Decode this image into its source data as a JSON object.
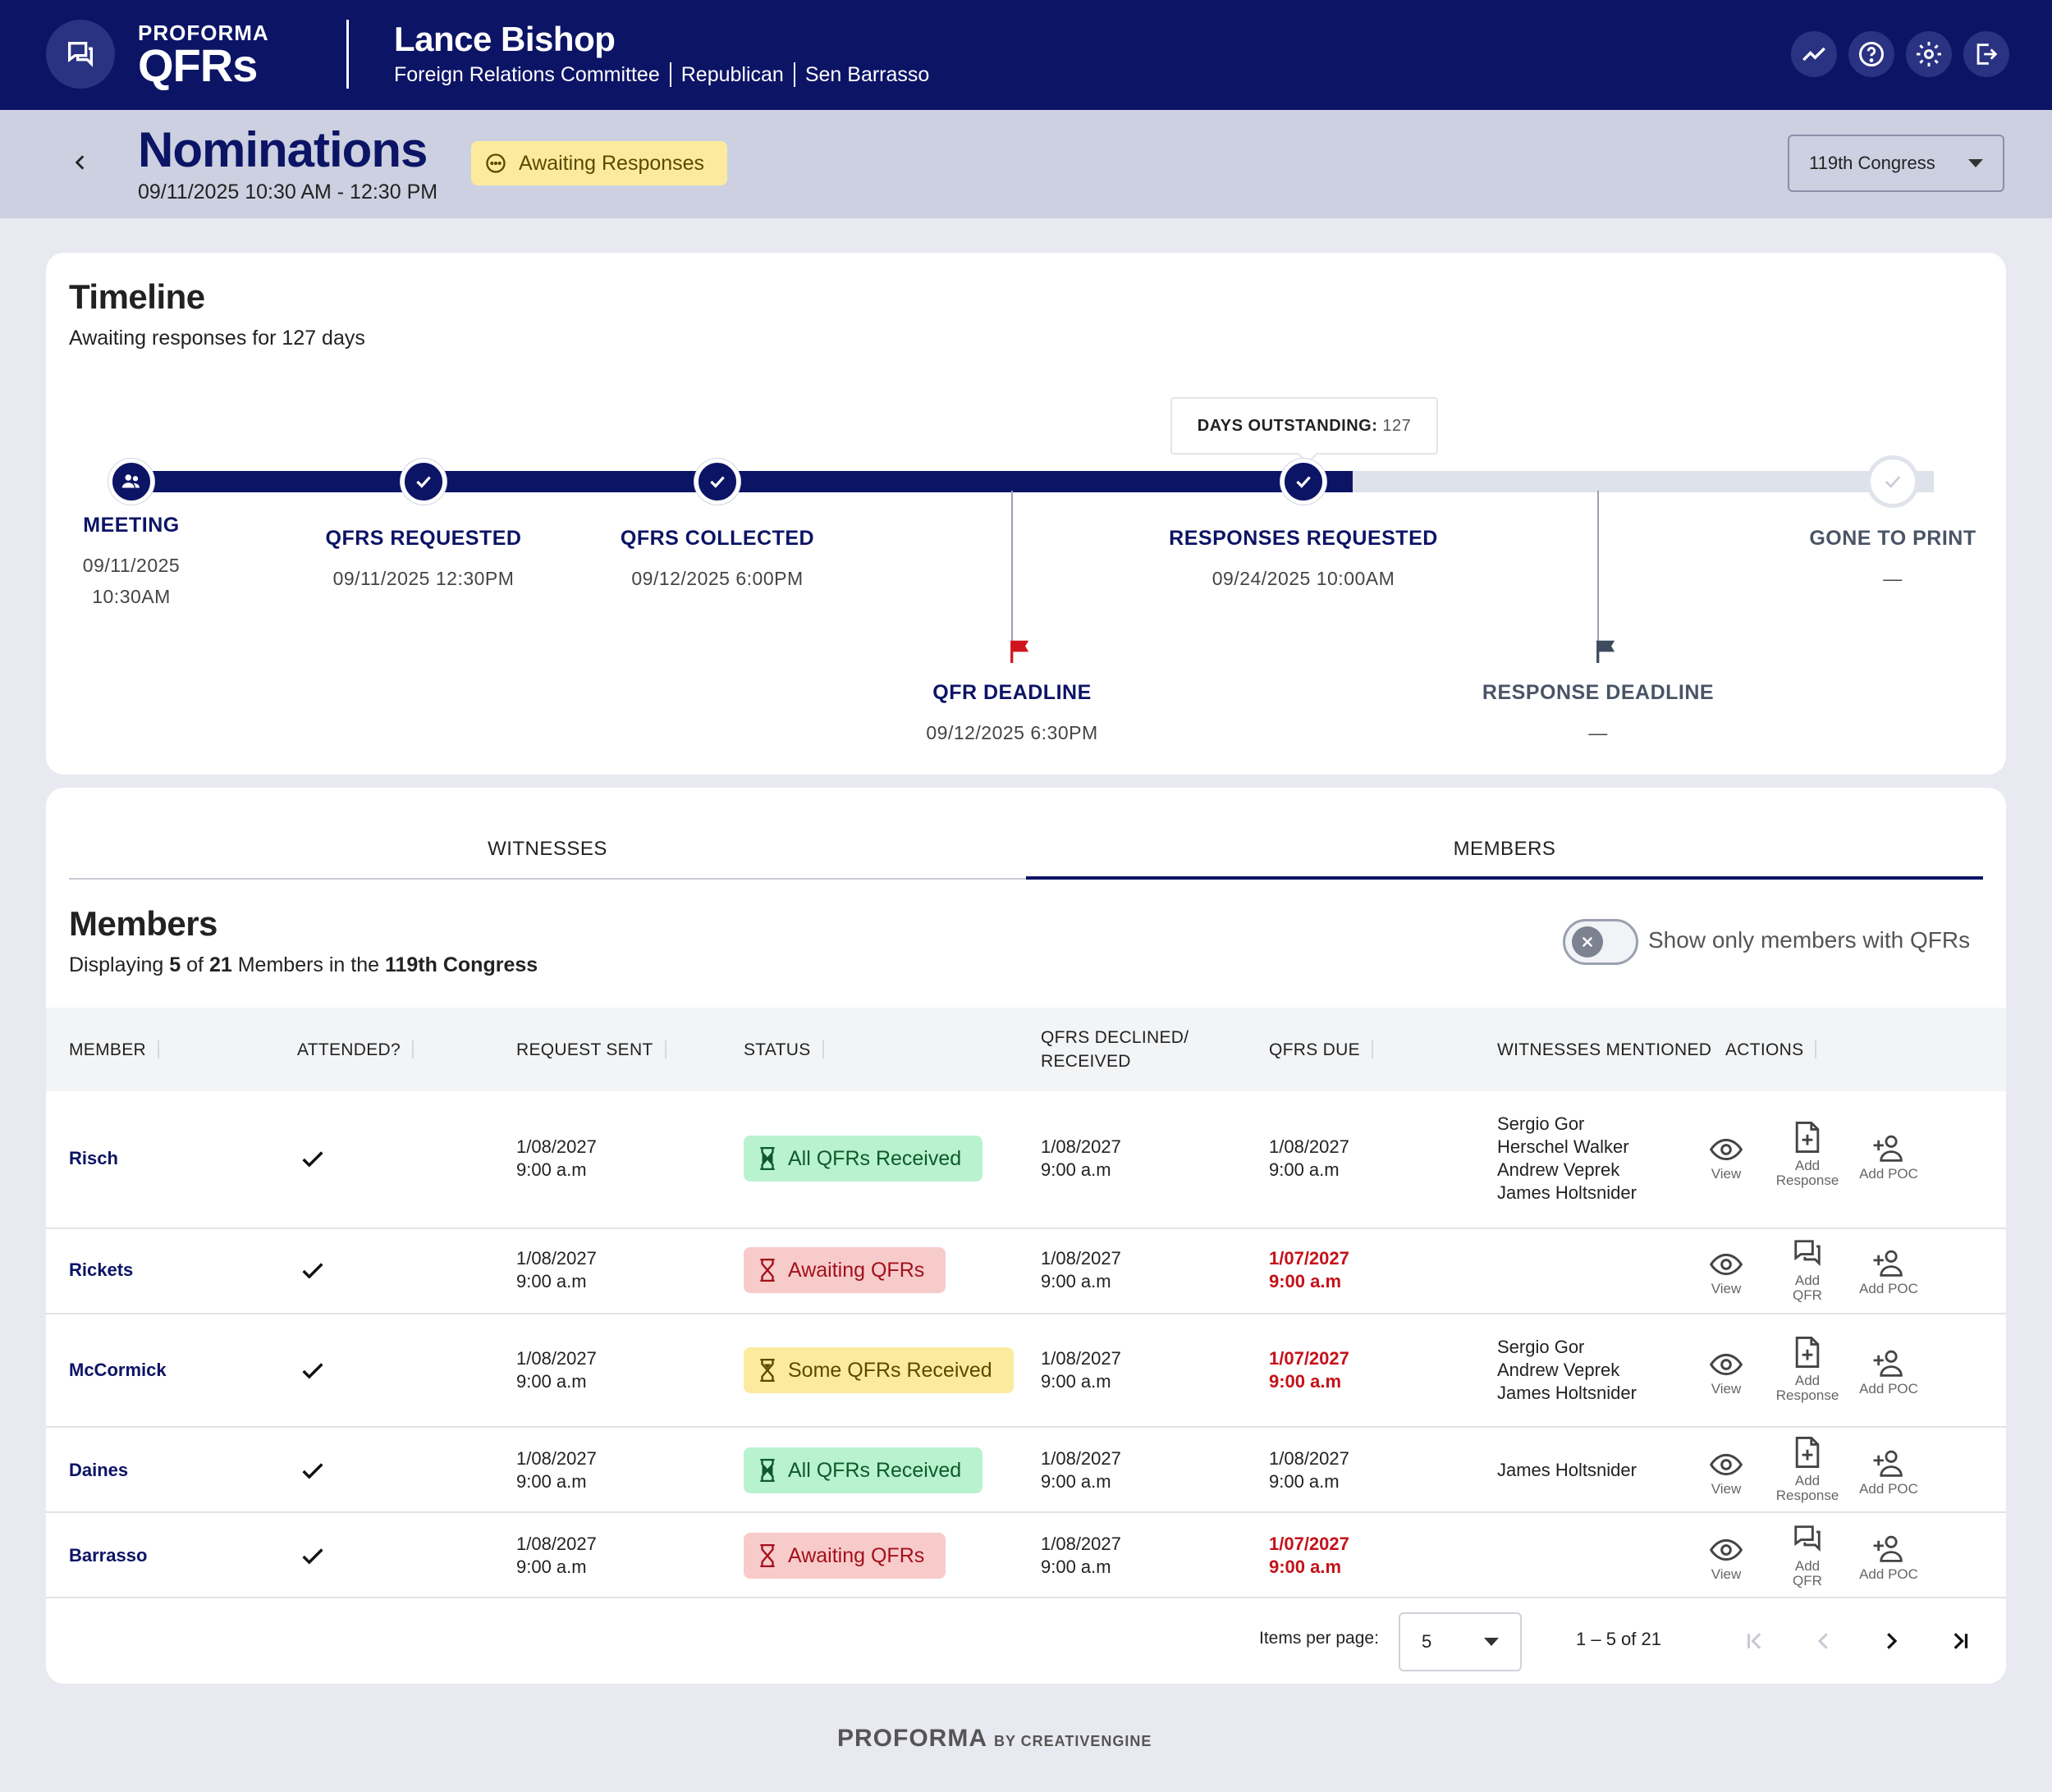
{
  "header": {
    "logo_top": "PROFORMA",
    "logo_main": "QFRs",
    "user_name": "Lance Bishop",
    "committee": "Foreign Relations Committee",
    "party": "Republican",
    "office": "Sen Barrasso",
    "icons": [
      "chat-icon",
      "trending-icon",
      "help-icon",
      "settings-icon",
      "logout-icon"
    ]
  },
  "subheader": {
    "title": "Nominations",
    "datetime": "09/11/2025 10:30 AM - 12:30 PM",
    "status": "Awaiting Responses",
    "congress": "119th Congress"
  },
  "timeline": {
    "title": "Timeline",
    "subtitle": "Awaiting responses for 127 days",
    "tooltip_label": "DAYS OUTSTANDING:",
    "tooltip_value": "127",
    "steps": [
      {
        "label": "MEETING",
        "date": "09/11/2025",
        "time": "10:30AM",
        "state": "done"
      },
      {
        "label": "QFRS REQUESTED",
        "date": "09/11/2025 12:30PM",
        "state": "done"
      },
      {
        "label": "QFRS COLLECTED",
        "date": "09/12/2025 6:00PM",
        "state": "done"
      },
      {
        "label": "RESPONSES REQUESTED",
        "date": "09/24/2025 10:00AM",
        "state": "done"
      },
      {
        "label": "GONE TO PRINT",
        "date": "—",
        "state": "pending"
      }
    ],
    "deadlines": [
      {
        "label": "QFR DEADLINE",
        "date": "09/12/2025 6:30PM",
        "flag_color": "#d0141c"
      },
      {
        "label": "RESPONSE DEADLINE",
        "date": "—",
        "flag_color": "#3e4a5e"
      }
    ]
  },
  "tabs": [
    {
      "label": "WITNESSES",
      "active": false
    },
    {
      "label": "MEMBERS",
      "active": true
    }
  ],
  "members": {
    "title": "Members",
    "displaying_prefix": "Displaying",
    "shown": "5",
    "of": "of",
    "total": "21",
    "mid": "Members in the",
    "congress": "119th Congress",
    "toggle_label": "Show only members with QFRs",
    "columns": [
      "MEMBER",
      "ATTENDED?",
      "REQUEST SENT",
      "STATUS",
      "QFRS DECLINED/",
      "RECEIVED",
      "QFRS DUE",
      "WITNESSES MENTIONED",
      "ACTIONS"
    ],
    "rows": [
      {
        "name": "Risch",
        "sent_date": "1/08/2027",
        "sent_time": "9:00 a.m",
        "status": "All QFRs Received",
        "status_kind": "green",
        "recv_date": "1/08/2027",
        "recv_time": "9:00 a.m",
        "due_date": "1/08/2027",
        "due_time": "9:00 a.m",
        "due_overdue": false,
        "witnesses": [
          "Sergio Gor",
          "Herschel Walker",
          "Andrew Veprek",
          "James Holtsnider"
        ],
        "mid_action": "response"
      },
      {
        "name": "Rickets",
        "sent_date": "1/08/2027",
        "sent_time": "9:00 a.m",
        "status": "Awaiting QFRs",
        "status_kind": "red",
        "recv_date": "1/08/2027",
        "recv_time": "9:00 a.m",
        "due_date": "1/07/2027",
        "due_time": "9:00 a.m",
        "due_overdue": true,
        "witnesses": [],
        "mid_action": "qfr"
      },
      {
        "name": "McCormick",
        "sent_date": "1/08/2027",
        "sent_time": "9:00 a.m",
        "status": "Some QFRs Received",
        "status_kind": "yellow",
        "recv_date": "1/08/2027",
        "recv_time": "9:00 a.m",
        "due_date": "1/07/2027",
        "due_time": "9:00 a.m",
        "due_overdue": true,
        "witnesses": [
          "Sergio Gor",
          "Andrew Veprek",
          "James Holtsnider"
        ],
        "mid_action": "response"
      },
      {
        "name": "Daines",
        "sent_date": "1/08/2027",
        "sent_time": "9:00 a.m",
        "status": "All QFRs Received",
        "status_kind": "green",
        "recv_date": "1/08/2027",
        "recv_time": "9:00 a.m",
        "due_date": "1/08/2027",
        "due_time": "9:00 a.m",
        "due_overdue": false,
        "witnesses": [
          "James Holtsnider"
        ],
        "mid_action": "response"
      },
      {
        "name": "Barrasso",
        "sent_date": "1/08/2027",
        "sent_time": "9:00 a.m",
        "status": "Awaiting QFRs",
        "status_kind": "red",
        "recv_date": "1/08/2027",
        "recv_time": "9:00 a.m",
        "due_date": "1/07/2027",
        "due_time": "9:00 a.m",
        "due_overdue": true,
        "witnesses": [],
        "mid_action": "qfr"
      }
    ],
    "actions": {
      "view": "View",
      "add": "Add",
      "response": "Response",
      "qfr": "QFR",
      "add_poc": "Add POC"
    }
  },
  "pagination": {
    "items_label": "Items per page:",
    "per_page": "5",
    "range": "1 – 5  of  21"
  },
  "footer": {
    "brand": "PROFORMA",
    "by": "BY CREATIVENGINE"
  },
  "colors": {
    "navy": "#0c1466",
    "overdue_red": "#c4121a",
    "green_badge": "#b9f2cf",
    "red_badge": "#f8cbcb",
    "yellow_badge": "#fceb9e"
  }
}
